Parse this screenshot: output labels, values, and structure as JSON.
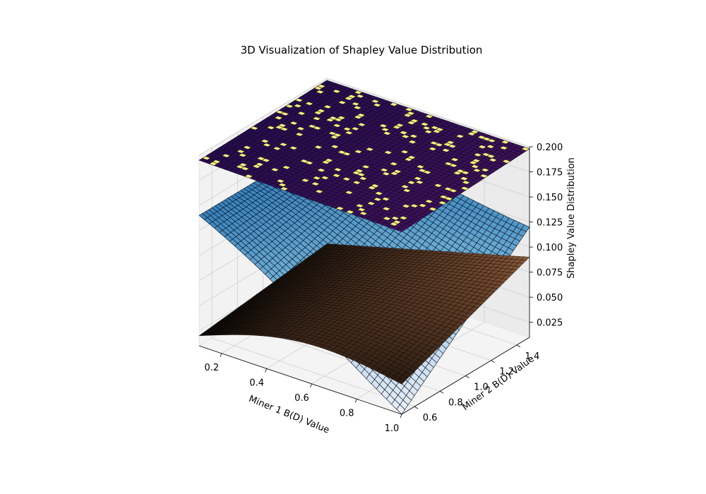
{
  "chart_data": {
    "type": "surface3d",
    "title": "3D Visualization of Shapley Value Distribution",
    "xlabel": "Miner 1 B(D) Value",
    "ylabel": "Miner 2 B(D) Value",
    "zlabel": "Shapley Value Distribution",
    "xlim": [
      0.1,
      1.0
    ],
    "ylim": [
      0.5,
      1.5
    ],
    "zlim": [
      0.01,
      0.2
    ],
    "xticks": [
      "0.2",
      "0.4",
      "0.6",
      "0.8",
      "1.0"
    ],
    "yticks": [
      "0.6",
      "0.8",
      "1.0",
      "1.2",
      "1.4"
    ],
    "zticks": [
      "0.025",
      "0.050",
      "0.075",
      "0.100",
      "0.125",
      "0.150",
      "0.175",
      "0.200"
    ],
    "grid": true,
    "series": [
      {
        "colormap": "inferno",
        "shape": "near-flat plane with scattered light cells",
        "z_range": [
          0.19,
          0.2
        ],
        "corners": {
          "x0y0": 0.195,
          "x1y0": 0.192,
          "x0y1": 0.198,
          "x1y1": 0.198
        }
      },
      {
        "colormap": "Blues",
        "shape": "tilted surface decreasing toward x max",
        "z_range": [
          0.01,
          0.14
        ],
        "corners": {
          "x0y0": 0.14,
          "x1y0": 0.01,
          "x0y1": 0.14,
          "x1y1": 0.12
        }
      },
      {
        "colormap": "copper",
        "shape": "saddle rising from x min, y min toward y max",
        "z_range": [
          0.02,
          0.09
        ],
        "corners": {
          "x0y0": 0.02,
          "x1y0": 0.04,
          "x0y1": 0.035,
          "x1y1": 0.09
        }
      }
    ]
  }
}
